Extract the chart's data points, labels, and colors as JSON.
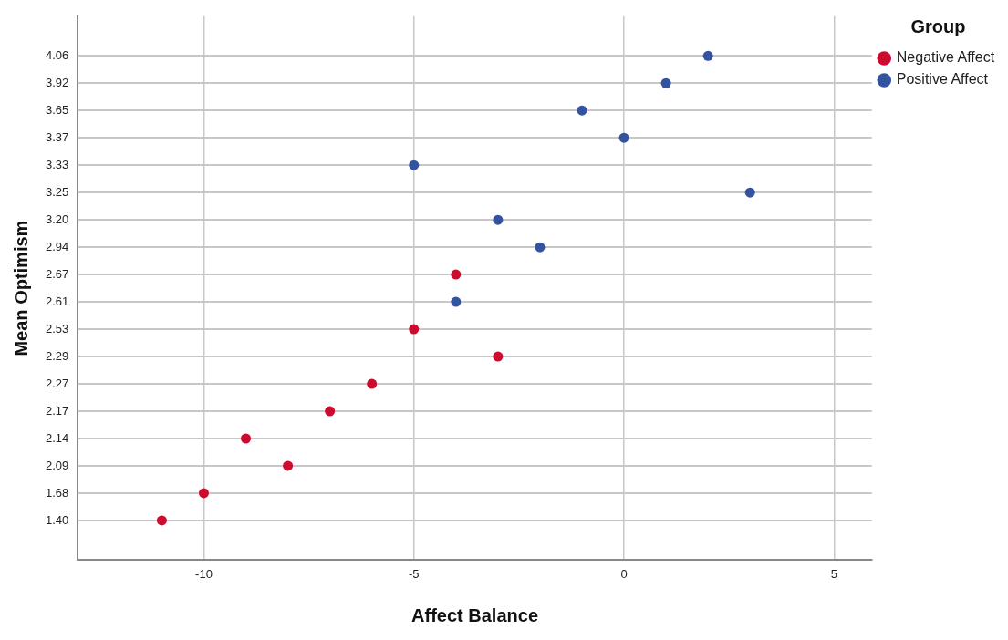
{
  "chart_data": {
    "type": "scatter",
    "orientation": "horizontal",
    "xlabel": "Affect Balance",
    "ylabel": "Mean Optimism",
    "legend_title": "Group",
    "categories": [
      "4.06",
      "3.92",
      "3.65",
      "3.37",
      "3.33",
      "3.25",
      "3.20",
      "2.94",
      "2.67",
      "2.61",
      "2.53",
      "2.29",
      "2.27",
      "2.17",
      "2.14",
      "2.09",
      "1.68",
      "1.40"
    ],
    "series": [
      {
        "name": "Negative Affect",
        "color": "#cc0c2f",
        "values": [
          null,
          null,
          null,
          null,
          null,
          null,
          null,
          null,
          -4,
          null,
          -5,
          -3,
          -6,
          -7,
          -9,
          -8,
          -10,
          -11
        ]
      },
      {
        "name": "Positive Affect",
        "color": "#3353a0",
        "values": [
          2,
          1,
          -1,
          0,
          -5,
          3,
          -3,
          -2,
          null,
          -4,
          null,
          null,
          null,
          null,
          null,
          null,
          null,
          null
        ]
      }
    ],
    "xlim": [
      -13,
      5.9
    ],
    "xticks": [
      -10,
      -5,
      0,
      5
    ],
    "grid": true,
    "legend": "top right",
    "marker": "circle"
  }
}
